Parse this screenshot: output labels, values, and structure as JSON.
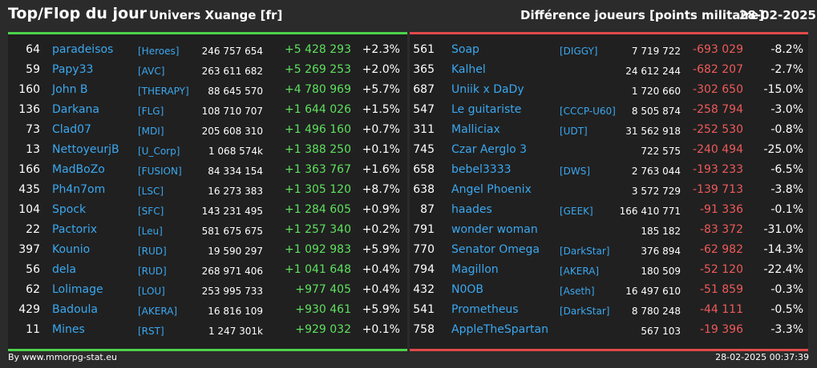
{
  "header": {
    "title": "Top/Flop du jour",
    "server": "Univers Xuange [fr]",
    "subtitle": "Différence joueurs [points militaire]",
    "date": "28-02-2025"
  },
  "colors": {
    "top_accent": "#4cd34c",
    "flop_accent": "#e04a4a",
    "name_blue": "#3ba8f0",
    "positive": "#5ee05e",
    "negative": "#ef5a5a"
  },
  "top": [
    {
      "rank": "64",
      "name": "paradeisos",
      "alliance": "[Heroes]",
      "points": "246 757 654",
      "delta": "+5 428 293",
      "pct": "+2.3%"
    },
    {
      "rank": "59",
      "name": "Papy33",
      "alliance": "[AVC]",
      "points": "263 611 682",
      "delta": "+5 269 253",
      "pct": "+2.0%"
    },
    {
      "rank": "160",
      "name": "John B",
      "alliance": "[THERAPY]",
      "points": "88 645 570",
      "delta": "+4 780 969",
      "pct": "+5.7%"
    },
    {
      "rank": "136",
      "name": "Darkana",
      "alliance": "[FLG]",
      "points": "108 710 707",
      "delta": "+1 644 026",
      "pct": "+1.5%"
    },
    {
      "rank": "73",
      "name": "Clad07",
      "alliance": "[MDI]",
      "points": "205 608 310",
      "delta": "+1 496 160",
      "pct": "+0.7%"
    },
    {
      "rank": "13",
      "name": "NettoyeurjB",
      "alliance": "[U_Corp]",
      "points": "1 068 574k",
      "delta": "+1 388 250",
      "pct": "+0.1%"
    },
    {
      "rank": "166",
      "name": "MadBoZo",
      "alliance": "[FUSION]",
      "points": "84 334 154",
      "delta": "+1 363 767",
      "pct": "+1.6%"
    },
    {
      "rank": "435",
      "name": "Ph4n7om",
      "alliance": "[LSC]",
      "points": "16 273 383",
      "delta": "+1 305 120",
      "pct": "+8.7%"
    },
    {
      "rank": "104",
      "name": "Spock",
      "alliance": "[SFC]",
      "points": "143 231 495",
      "delta": "+1 284 605",
      "pct": "+0.9%"
    },
    {
      "rank": "22",
      "name": "Pactorix",
      "alliance": "[Leu]",
      "points": "581 675 675",
      "delta": "+1 257 340",
      "pct": "+0.2%"
    },
    {
      "rank": "397",
      "name": "Kounio",
      "alliance": "[RUD]",
      "points": "19 590 297",
      "delta": "+1 092 983",
      "pct": "+5.9%"
    },
    {
      "rank": "56",
      "name": "dela",
      "alliance": "[RUD]",
      "points": "268 971 406",
      "delta": "+1 041 648",
      "pct": "+0.4%"
    },
    {
      "rank": "62",
      "name": "Lolimage",
      "alliance": "[LOU]",
      "points": "253 995 733",
      "delta": "+977 405",
      "pct": "+0.4%"
    },
    {
      "rank": "429",
      "name": "Badoula",
      "alliance": "[AKERA]",
      "points": "16 816 109",
      "delta": "+930 461",
      "pct": "+5.9%"
    },
    {
      "rank": "11",
      "name": "Mines",
      "alliance": "[RST]",
      "points": "1 247 301k",
      "delta": "+929 032",
      "pct": "+0.1%"
    }
  ],
  "flop": [
    {
      "rank": "561",
      "name": "Soap",
      "alliance": "[DIGGY]",
      "points": "7 719 722",
      "delta": "-693 029",
      "pct": "-8.2%"
    },
    {
      "rank": "365",
      "name": "Kalhel",
      "alliance": "",
      "points": "24 612 244",
      "delta": "-682 207",
      "pct": "-2.7%"
    },
    {
      "rank": "687",
      "name": "Uniik x DaDy",
      "alliance": "",
      "points": "1 720 660",
      "delta": "-302 650",
      "pct": "-15.0%"
    },
    {
      "rank": "547",
      "name": "Le guitariste",
      "alliance": "[CCCP-U60]",
      "points": "8 505 874",
      "delta": "-258 794",
      "pct": "-3.0%"
    },
    {
      "rank": "311",
      "name": "Malliciax",
      "alliance": "[UDT]",
      "points": "31 562 918",
      "delta": "-252 530",
      "pct": "-0.8%"
    },
    {
      "rank": "745",
      "name": "Czar Aerglo 3",
      "alliance": "",
      "points": "722 575",
      "delta": "-240 494",
      "pct": "-25.0%"
    },
    {
      "rank": "658",
      "name": "bebel3333",
      "alliance": "[DWS]",
      "points": "2 763 044",
      "delta": "-193 233",
      "pct": "-6.5%"
    },
    {
      "rank": "638",
      "name": "Angel Phoenix",
      "alliance": "",
      "points": "3 572 729",
      "delta": "-139 713",
      "pct": "-3.8%"
    },
    {
      "rank": "87",
      "name": "haades",
      "alliance": "[GEEK]",
      "points": "166 410 771",
      "delta": "-91 336",
      "pct": "-0.1%"
    },
    {
      "rank": "791",
      "name": "wonder woman",
      "alliance": "",
      "points": "185 182",
      "delta": "-83 372",
      "pct": "-31.0%"
    },
    {
      "rank": "770",
      "name": "Senator Omega",
      "alliance": "[DarkStar]",
      "points": "376 894",
      "delta": "-62 982",
      "pct": "-14.3%"
    },
    {
      "rank": "794",
      "name": "Magillon",
      "alliance": "[AKERA]",
      "points": "180 509",
      "delta": "-52 120",
      "pct": "-22.4%"
    },
    {
      "rank": "432",
      "name": "N0OB",
      "alliance": "[Aseth]",
      "points": "16 497 610",
      "delta": "-51 859",
      "pct": "-0.3%"
    },
    {
      "rank": "541",
      "name": "Prometheus",
      "alliance": "[DarkStar]",
      "points": "8 780 248",
      "delta": "-44 111",
      "pct": "-0.5%"
    },
    {
      "rank": "758",
      "name": "AppleTheSpartan",
      "alliance": "",
      "points": "567 103",
      "delta": "-19 396",
      "pct": "-3.3%"
    }
  ],
  "footer": {
    "source": "By www.mmorpg-stat.eu",
    "timestamp": "28-02-2025 00:37:39"
  }
}
